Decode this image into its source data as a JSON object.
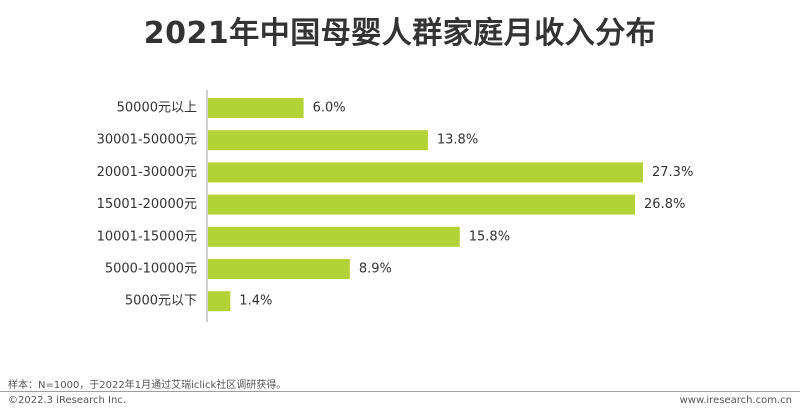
{
  "title": "2021年中国母婴人群家庭月收入分布",
  "chart_data": {
    "type": "bar",
    "orientation": "horizontal",
    "categories": [
      "50000元以上",
      "30001-50000元",
      "20001-30000元",
      "15001-20000元",
      "10001-15000元",
      "5000-10000元",
      "5000元以下"
    ],
    "values": [
      6.0,
      13.8,
      27.3,
      26.8,
      15.8,
      8.9,
      1.4
    ],
    "value_labels": [
      "6.0%",
      "13.8%",
      "27.3%",
      "26.8%",
      "15.8%",
      "8.9%",
      "1.4%"
    ],
    "bar_color": "#b2d235",
    "axis_color": "#9e9e9e",
    "xlim": [
      0,
      27.3
    ],
    "grid": false
  },
  "footer": {
    "note": "样本：N=1000，于2022年1月通过艾瑞iclick社区调研获得。",
    "copyright": "©2022.3 iResearch Inc.",
    "website": "www.iresearch.com.cn"
  }
}
